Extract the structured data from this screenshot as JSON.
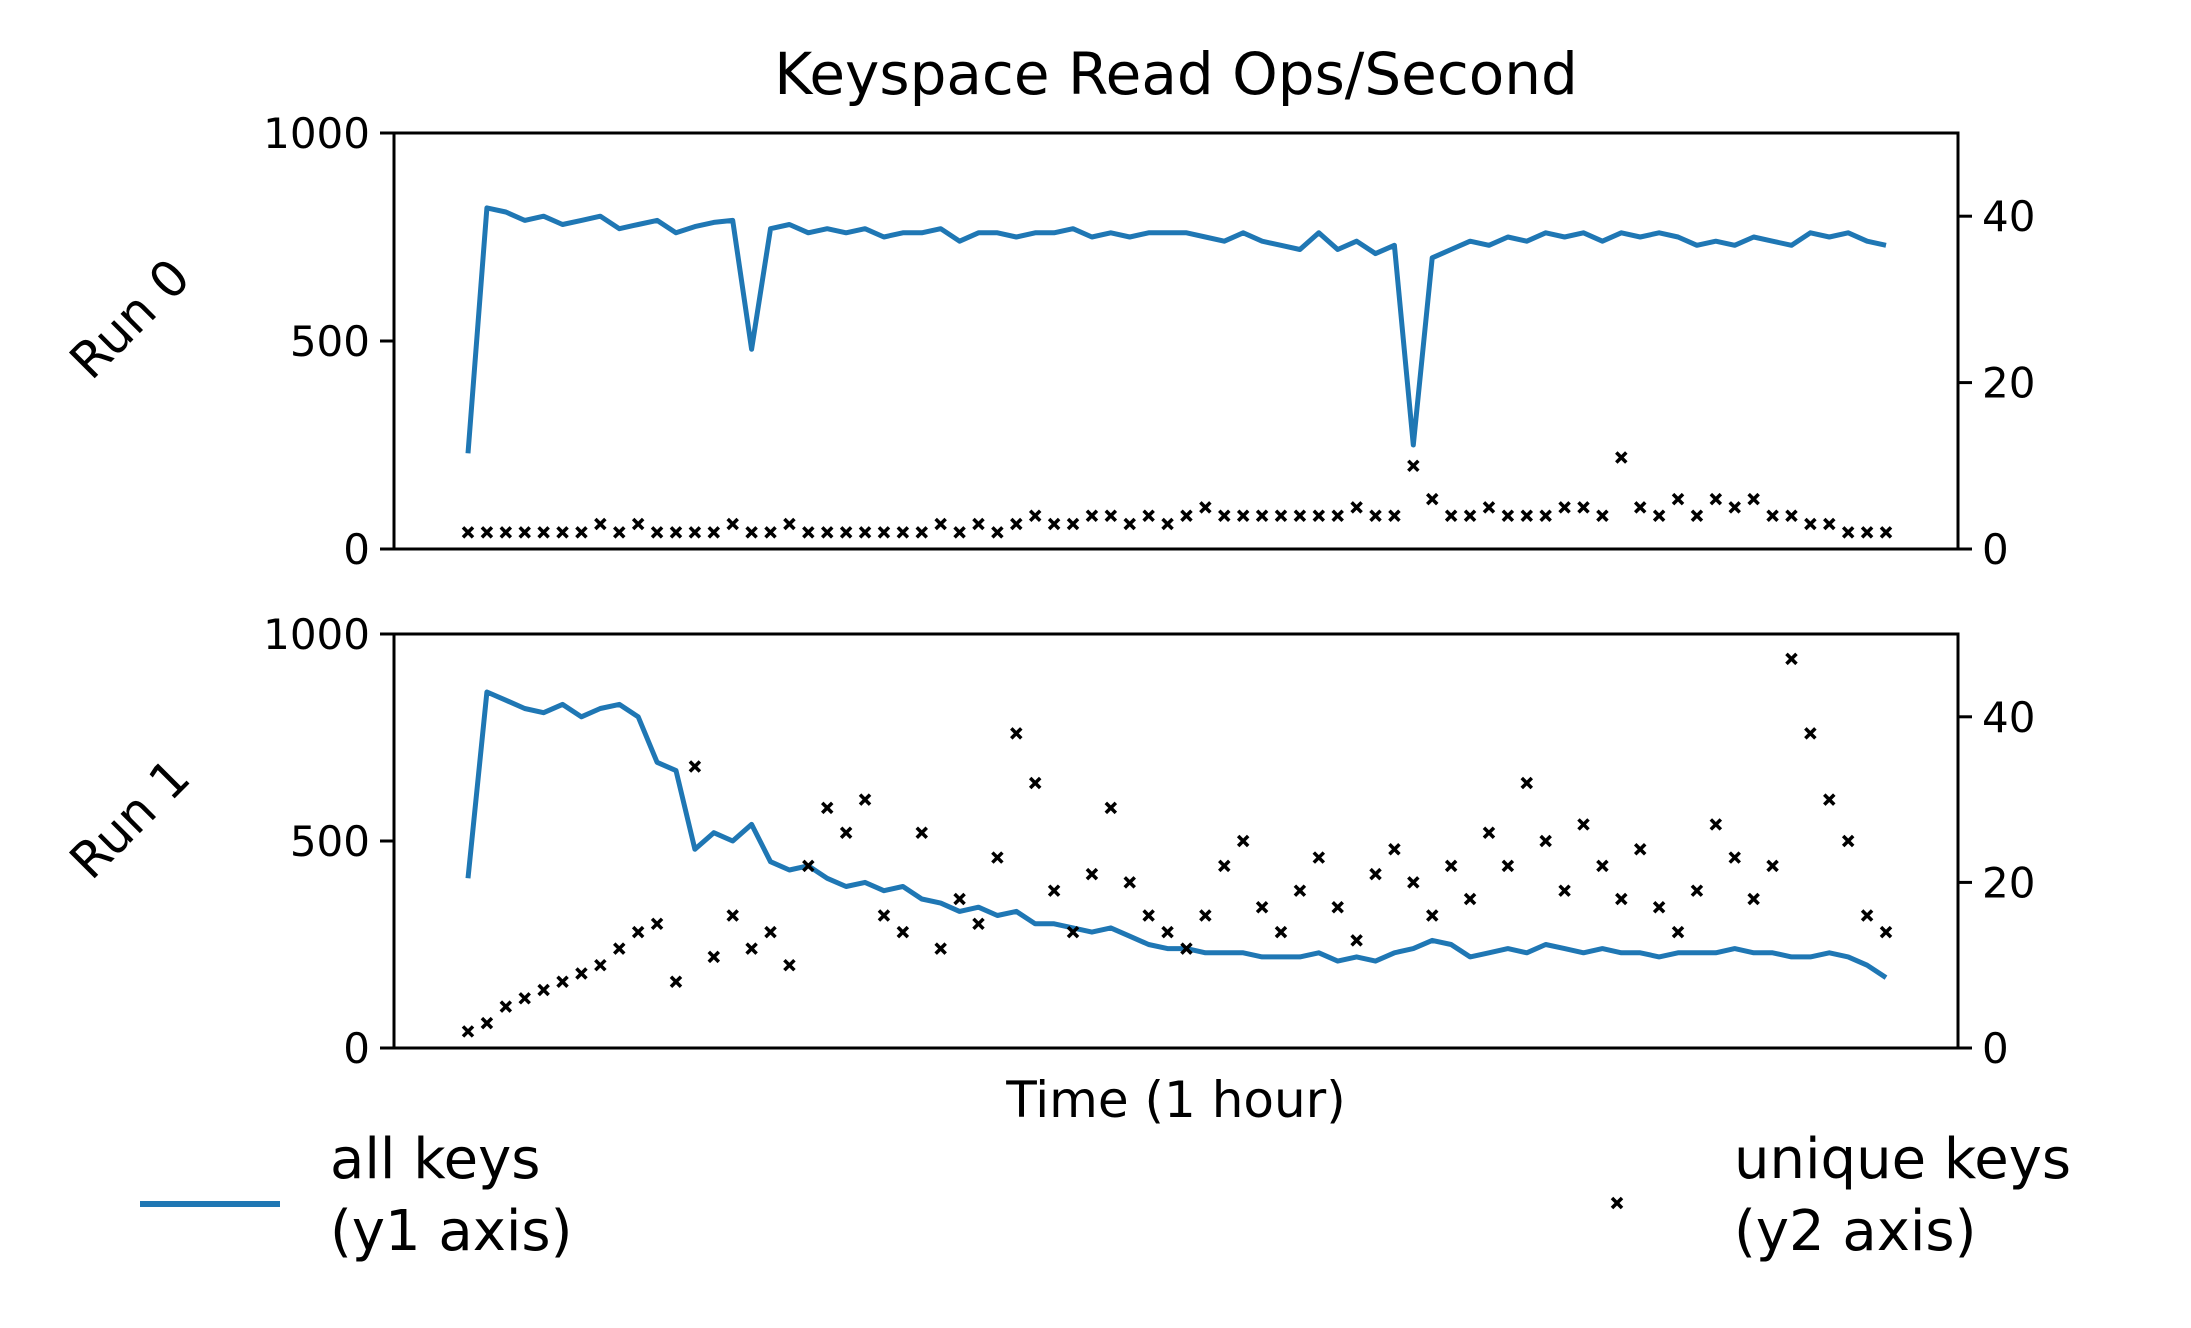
{
  "chart_data": {
    "type": "line",
    "title": "Keyspace Read Ops/Second",
    "xlabel": "Time (1 hour)",
    "legend": {
      "placement": "bottom",
      "entries": [
        {
          "line1": "all keys",
          "line2": "(y1 axis)",
          "color": "#1f77b4",
          "marker": "line"
        },
        {
          "line1": "unique keys",
          "line2": "(y2 axis)",
          "color": "#000000",
          "marker": "x"
        }
      ]
    },
    "panels": [
      {
        "ylabel": "Run 0",
        "y1lim": [
          0,
          1000
        ],
        "y1ticks": [
          "0",
          "500",
          "1000"
        ],
        "y2lim": [
          0,
          50
        ],
        "y2ticks": [
          "0",
          "20",
          "40"
        ],
        "series": [
          {
            "name": "all keys",
            "axis": "y1",
            "color": "#1f77b4",
            "values": [
              230,
              820,
              810,
              790,
              800,
              780,
              790,
              800,
              770,
              780,
              790,
              760,
              775,
              785,
              790,
              480,
              770,
              780,
              760,
              770,
              760,
              770,
              750,
              760,
              760,
              770,
              740,
              760,
              760,
              750,
              760,
              760,
              770,
              750,
              760,
              750,
              760,
              760,
              760,
              750,
              740,
              760,
              740,
              730,
              720,
              760,
              720,
              740,
              710,
              730,
              250,
              700,
              720,
              740,
              730,
              750,
              740,
              760,
              750,
              760,
              740,
              760,
              750,
              760,
              750,
              730,
              740,
              730,
              750,
              740,
              730,
              760,
              750,
              760,
              740,
              730
            ]
          },
          {
            "name": "unique keys",
            "axis": "y2",
            "color": "#000000",
            "values": [
              2,
              2,
              2,
              2,
              2,
              2,
              2,
              3,
              2,
              3,
              2,
              2,
              2,
              2,
              3,
              2,
              2,
              3,
              2,
              2,
              2,
              2,
              2,
              2,
              2,
              3,
              2,
              3,
              2,
              3,
              4,
              3,
              3,
              4,
              4,
              3,
              4,
              3,
              4,
              5,
              4,
              4,
              4,
              4,
              4,
              4,
              4,
              5,
              4,
              4,
              10,
              6,
              4,
              4,
              5,
              4,
              4,
              4,
              5,
              5,
              4,
              11,
              5,
              4,
              6,
              4,
              6,
              5,
              6,
              4,
              4,
              3,
              3,
              2,
              2,
              2
            ]
          }
        ]
      },
      {
        "ylabel": "Run 1",
        "y1lim": [
          0,
          1000
        ],
        "y1ticks": [
          "0",
          "500",
          "1000"
        ],
        "y2lim": [
          0,
          50
        ],
        "y2ticks": [
          "0",
          "20",
          "40"
        ],
        "series": [
          {
            "name": "all keys",
            "axis": "y1",
            "color": "#1f77b4",
            "values": [
              410,
              860,
              840,
              820,
              810,
              830,
              800,
              820,
              830,
              800,
              690,
              670,
              480,
              520,
              500,
              540,
              450,
              430,
              440,
              410,
              390,
              400,
              380,
              390,
              360,
              350,
              330,
              340,
              320,
              330,
              300,
              300,
              290,
              280,
              290,
              270,
              250,
              240,
              240,
              230,
              230,
              230,
              220,
              220,
              220,
              230,
              210,
              220,
              210,
              230,
              240,
              260,
              250,
              220,
              230,
              240,
              230,
              250,
              240,
              230,
              240,
              230,
              230,
              220,
              230,
              230,
              230,
              240,
              230,
              230,
              220,
              220,
              230,
              220,
              200,
              170
            ]
          },
          {
            "name": "unique keys",
            "axis": "y2",
            "color": "#000000",
            "values": [
              2,
              3,
              5,
              6,
              7,
              8,
              9,
              10,
              12,
              14,
              15,
              8,
              34,
              11,
              16,
              12,
              14,
              10,
              22,
              29,
              26,
              30,
              16,
              14,
              26,
              12,
              18,
              15,
              23,
              38,
              32,
              19,
              14,
              21,
              29,
              20,
              16,
              14,
              12,
              16,
              22,
              25,
              17,
              14,
              19,
              23,
              17,
              13,
              21,
              24,
              20,
              16,
              22,
              18,
              26,
              22,
              32,
              25,
              19,
              27,
              22,
              18,
              24,
              17,
              14,
              19,
              27,
              23,
              18,
              22,
              47,
              38,
              30,
              25,
              16,
              14
            ]
          }
        ]
      }
    ]
  }
}
